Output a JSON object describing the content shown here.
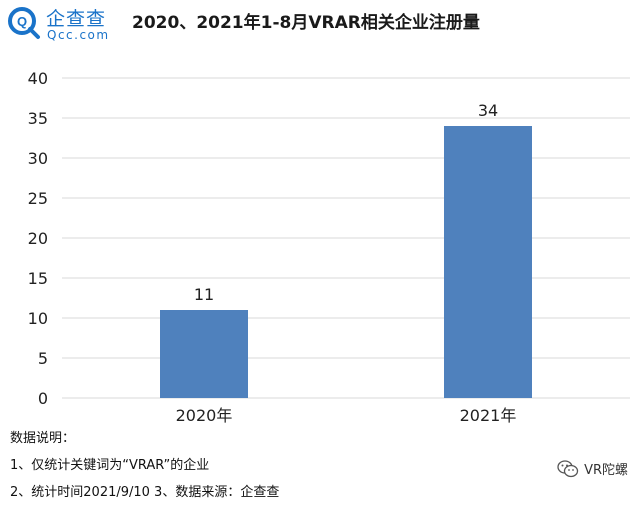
{
  "brand": {
    "name": "企查查",
    "sub": "Qcc.com",
    "color": "#1a73c9"
  },
  "title": "2020、2021年1-8月VRAR相关企业注册量",
  "chart_data": {
    "type": "bar",
    "title": "2020、2021年1-8月VRAR相关企业注册量",
    "categories": [
      "2020年",
      "2021年"
    ],
    "values": [
      11,
      34
    ],
    "data_labels": [
      "11",
      "34"
    ],
    "xlabel": "",
    "ylabel": "",
    "ylim": [
      0,
      40
    ],
    "yticks": [
      0,
      5,
      10,
      15,
      20,
      25,
      30,
      35,
      40
    ],
    "grid": true,
    "bar_color": "#4f81bd",
    "grid_color": "#d9d9d9"
  },
  "notes": {
    "heading": "数据说明：",
    "line1": "1、仅统计关键词为“VRAR”的企业",
    "line2": "2、统计时间2021/9/10  3、数据来源：企查查"
  },
  "watermark": {
    "text": "VR陀螺",
    "icon": "wechat-icon"
  }
}
